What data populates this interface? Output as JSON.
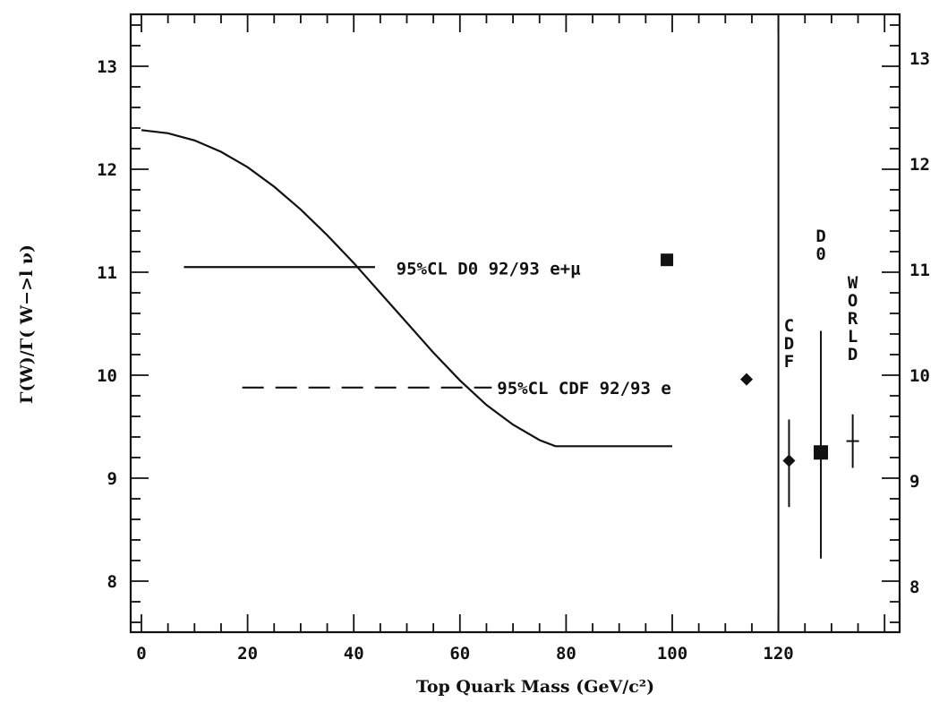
{
  "chart_data": {
    "type": "line",
    "xlabel": "Top Quark Mass (GeV/c²)",
    "ylabel": "Γ(W)/Γ( W−>l ν)",
    "xlim": [
      0,
      143
    ],
    "ylim": [
      7.5,
      13.5
    ],
    "x_ticks": [
      0,
      20,
      40,
      60,
      80,
      100,
      120
    ],
    "y_ticks": [
      8,
      9,
      10,
      11,
      12,
      13
    ],
    "right_y_ticks": [
      8,
      9,
      10,
      11,
      12,
      13
    ],
    "divider_x": 120,
    "series": [
      {
        "style": "solid",
        "x": [
          0,
          5,
          10,
          15,
          20,
          25,
          30,
          35,
          40,
          45,
          50,
          55,
          60,
          65,
          70,
          75,
          78,
          80,
          90,
          100
        ],
        "y": [
          12.38,
          12.35,
          12.28,
          12.17,
          12.02,
          11.83,
          11.61,
          11.36,
          11.09,
          10.8,
          10.51,
          10.22,
          9.95,
          9.71,
          9.52,
          9.37,
          9.31,
          9.31,
          9.31,
          9.31
        ]
      }
    ],
    "limits": [
      {
        "label": "95%CL D0 92/93 e+μ",
        "style": "solid",
        "x_from": 8,
        "x_to": 44,
        "y": 11.05,
        "marker": "square",
        "marker_x": 99,
        "marker_y": 11.12
      },
      {
        "label": "95%CL CDF 92/93 e",
        "style": "dashed",
        "x_from": 19,
        "x_to": 66,
        "y": 9.88,
        "marker": "diamond",
        "marker_x": 114,
        "marker_y": 9.96
      }
    ],
    "measurements": [
      {
        "label": "CDF",
        "x": 122,
        "y": 9.17,
        "yerr_low": 8.72,
        "yerr_high": 9.57,
        "marker": "diamond"
      },
      {
        "label": "D0",
        "x": 128,
        "y": 9.25,
        "yerr_low": 8.22,
        "yerr_high": 10.43,
        "marker": "square"
      },
      {
        "label": "WORLD",
        "x": 134,
        "y": 9.36,
        "yerr_low": 9.1,
        "yerr_high": 9.62,
        "marker": "cross"
      }
    ]
  }
}
